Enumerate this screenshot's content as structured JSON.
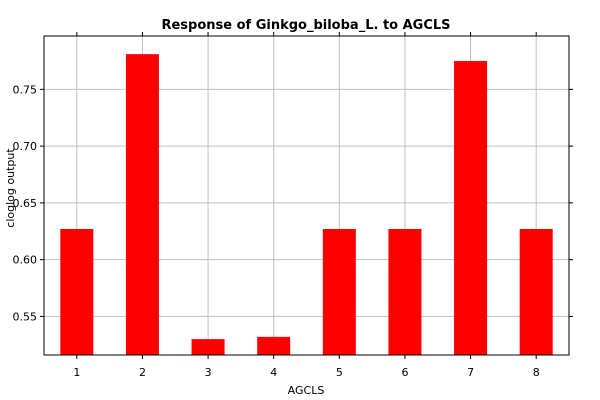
{
  "chart_data": {
    "type": "bar",
    "title": "Response of Ginkgo_biloba_L. to AGCLS",
    "xlabel": "AGCLS",
    "ylabel": "cloglog output",
    "categories": [
      "1",
      "2",
      "3",
      "4",
      "5",
      "6",
      "7",
      "8"
    ],
    "values": [
      0.627,
      0.781,
      0.53,
      0.532,
      0.627,
      0.627,
      0.775,
      0.627
    ],
    "ylim": [
      0.516,
      0.797
    ],
    "yticks": [
      0.55,
      0.6,
      0.65,
      0.7,
      0.75
    ],
    "ytick_labels": [
      "0.55",
      "0.60",
      "0.65",
      "0.70",
      "0.75"
    ],
    "bar_color": "#ff0000",
    "grid": true,
    "grid_color": "#c0c0c0"
  }
}
